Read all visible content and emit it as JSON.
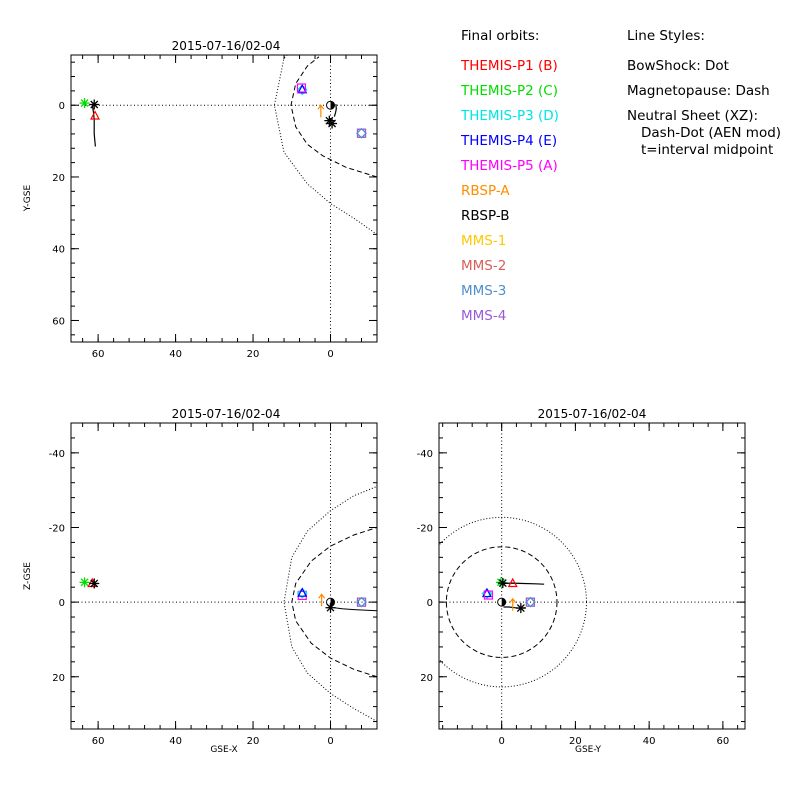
{
  "legend": {
    "orbits_title": "Final orbits:",
    "styles_title": "Line Styles:",
    "orbits": [
      {
        "label": "THEMIS-P1 (B)",
        "color": "#ff0000"
      },
      {
        "label": "THEMIS-P2 (C)",
        "color": "#00dd00"
      },
      {
        "label": "THEMIS-P3 (D)",
        "color": "#00e5e5"
      },
      {
        "label": "THEMIS-P4 (E)",
        "color": "#0000ff"
      },
      {
        "label": "THEMIS-P5 (A)",
        "color": "#ff00ff"
      },
      {
        "label": "RBSP-A",
        "color": "#ff8c00"
      },
      {
        "label": "RBSP-B",
        "color": "#000000"
      },
      {
        "label": "MMS-1",
        "color": "#ffc800"
      },
      {
        "label": "MMS-2",
        "color": "#d8605a"
      },
      {
        "label": "MMS-3",
        "color": "#4f8fd0"
      },
      {
        "label": "MMS-4",
        "color": "#9a5cd6"
      }
    ],
    "styles": [
      "BowShock: Dot",
      "Magnetopause: Dash",
      "Neutral Sheet (XZ):",
      "Dash-Dot (AEN mod)",
      "t=interval midpoint"
    ]
  },
  "chart_data": [
    {
      "id": "xy",
      "type": "scatter",
      "title": "2015-07-16/02-04",
      "xlabel": "",
      "ylabel": "Y-GSE",
      "xlim": [
        67,
        -12
      ],
      "ylim": [
        -14,
        66
      ],
      "xticks": [
        60,
        40,
        20,
        0
      ],
      "yticks": [
        0,
        20,
        40,
        60
      ],
      "bowshock": [
        [
          -12,
          36
        ],
        [
          -6,
          31.5
        ],
        [
          0,
          27.4
        ],
        [
          6,
          21.9
        ],
        [
          12,
          13.1
        ],
        [
          14.5,
          0
        ],
        [
          12,
          -13.1
        ],
        [
          8,
          -17.5
        ],
        [
          5,
          -20
        ]
      ],
      "magnetopause": [
        [
          -12,
          20
        ],
        [
          -4,
          17.3
        ],
        [
          2,
          14.1
        ],
        [
          6,
          10.9
        ],
        [
          9,
          6
        ],
        [
          10.2,
          0
        ],
        [
          9,
          -6
        ],
        [
          6,
          -10.9
        ],
        [
          3,
          -13.5
        ]
      ],
      "track": [
        [
          61.5,
          0
        ],
        [
          61.2,
          2
        ],
        [
          61,
          4
        ],
        [
          61,
          6
        ],
        [
          61,
          8
        ],
        [
          60.7,
          11.5
        ]
      ],
      "rbsp_track": [
        [
          -1,
          3.2
        ],
        [
          -1.3,
          2
        ],
        [
          -1.5,
          1
        ],
        [
          -1.4,
          -0.3
        ]
      ],
      "markers": [
        {
          "name": "THEMIS-P1 (B)",
          "x": 60.8,
          "y": 3,
          "shape": "triangle",
          "color": "#ff0000"
        },
        {
          "name": "THEMIS-P2 (C)",
          "x": 63.5,
          "y": -0.6,
          "shape": "star",
          "color": "#00dd00"
        },
        {
          "name": "THEMIS-P3 (D)",
          "x": 7.3,
          "y": -4.3,
          "shape": "diamond",
          "color": "#00e5e5"
        },
        {
          "name": "THEMIS-P4 (E)",
          "x": 7.3,
          "y": -4.3,
          "shape": "triangle",
          "color": "#0000ff"
        },
        {
          "name": "THEMIS-P5 (A)",
          "x": 7.5,
          "y": -4.8,
          "shape": "square",
          "color": "#ff00ff"
        },
        {
          "name": "RBSP-A",
          "x": 2.5,
          "y": 1.7,
          "shape": "arrow",
          "color": "#ff8c00"
        },
        {
          "name": "RBSP-B",
          "x": -0.4,
          "y": 5.1,
          "shape": "star",
          "color": "#000000"
        },
        {
          "name": "THEMIS-P1 track end",
          "x": 61,
          "y": -0.2,
          "shape": "star",
          "color": "#000000"
        },
        {
          "name": "RBSP-B",
          "x": 0.3,
          "y": 4.3,
          "shape": "star",
          "color": "#000000"
        },
        {
          "name": "MMS-2",
          "x": -8,
          "y": 7.8,
          "shape": "square",
          "color": "#d8605a"
        },
        {
          "name": "MMS-4",
          "x": -8,
          "y": 7.8,
          "shape": "square",
          "color": "#9a5cd6"
        },
        {
          "name": "MMS-3",
          "x": -8,
          "y": 7.8,
          "shape": "diamond",
          "color": "#4f8fd0"
        }
      ]
    },
    {
      "id": "xz",
      "type": "scatter",
      "title": "2015-07-16/02-04",
      "xlabel": "GSE-X",
      "ylabel": "Z-GSE",
      "xlim": [
        67,
        -12
      ],
      "ylim": [
        -48,
        34
      ],
      "xticks": [
        60,
        40,
        20,
        0
      ],
      "yticks": [
        -40,
        -20,
        0,
        20
      ],
      "bowshock": [
        [
          -12,
          32
        ],
        [
          -6,
          28.5
        ],
        [
          0,
          24.5
        ],
        [
          6,
          19
        ],
        [
          10,
          12
        ],
        [
          12,
          0
        ],
        [
          10,
          -12
        ],
        [
          6,
          -19
        ],
        [
          0,
          -24.5
        ],
        [
          -6,
          -28.5
        ],
        [
          -12,
          -31
        ]
      ],
      "magnetopause": [
        [
          -12,
          20
        ],
        [
          -6,
          18
        ],
        [
          0,
          15
        ],
        [
          5,
          11
        ],
        [
          9,
          5
        ],
        [
          10,
          0
        ],
        [
          9,
          -5
        ],
        [
          5,
          -11
        ],
        [
          0,
          -15
        ],
        [
          -6,
          -18
        ],
        [
          -12,
          -20
        ]
      ],
      "neutral_sheet": [
        [
          -1,
          1.5
        ],
        [
          -3,
          1.8
        ],
        [
          -6,
          2
        ],
        [
          -12,
          2.3
        ]
      ],
      "markers": [
        {
          "name": "THEMIS-P2 (C)",
          "x": 63.5,
          "y": -5.3,
          "shape": "star",
          "color": "#00dd00"
        },
        {
          "name": "THEMIS-P1 (B)",
          "x": 61.5,
          "y": -5,
          "shape": "triangle",
          "color": "#ff0000"
        },
        {
          "name": "THEMIS-P1 track end",
          "x": 61,
          "y": -5,
          "shape": "star",
          "color": "#000000"
        },
        {
          "name": "THEMIS-P5 (A)",
          "x": 7.3,
          "y": -1.8,
          "shape": "square",
          "color": "#ff00ff"
        },
        {
          "name": "THEMIS-P3 (D)",
          "x": 7.3,
          "y": -2.4,
          "shape": "diamond",
          "color": "#00e5e5"
        },
        {
          "name": "THEMIS-P4 (E)",
          "x": 7.3,
          "y": -2.4,
          "shape": "triangle",
          "color": "#0000ff"
        },
        {
          "name": "RBSP-A",
          "x": 2.3,
          "y": -0.5,
          "shape": "arrow",
          "color": "#ff8c00"
        },
        {
          "name": "RBSP-B",
          "x": 0,
          "y": 1.5,
          "shape": "star",
          "color": "#000000"
        },
        {
          "name": "MMS-2",
          "x": -8,
          "y": 0,
          "shape": "square",
          "color": "#d8605a"
        },
        {
          "name": "MMS-4",
          "x": -8,
          "y": 0,
          "shape": "square",
          "color": "#9a5cd6"
        },
        {
          "name": "MMS-3",
          "x": -8,
          "y": 0,
          "shape": "diamond",
          "color": "#4f8fd0"
        }
      ]
    },
    {
      "id": "yz",
      "type": "scatter",
      "title": "2015-07-16/02-04",
      "xlabel": "GSE-Y",
      "ylabel": "",
      "xlim": [
        -17,
        66
      ],
      "ylim": [
        -48,
        34
      ],
      "xticks": [
        0,
        20,
        40,
        60
      ],
      "yticks": [
        -40,
        -20,
        0,
        20
      ],
      "bowshock_radius": 23,
      "magnetopause_radius": 15,
      "track": [
        [
          0,
          -5
        ],
        [
          3,
          -5.1
        ],
        [
          6,
          -5
        ],
        [
          9,
          -4.9
        ],
        [
          11.5,
          -4.8
        ]
      ],
      "rbsp_track": [
        [
          0.5,
          1.3
        ],
        [
          2,
          1.3
        ],
        [
          3.5,
          1.5
        ],
        [
          5,
          1.6
        ],
        [
          6.5,
          1.5
        ]
      ],
      "markers": [
        {
          "name": "THEMIS-P3 (D)",
          "x": -4,
          "y": -2.3,
          "shape": "diamond",
          "color": "#00e5e5"
        },
        {
          "name": "THEMIS-P4 (E)",
          "x": -4,
          "y": -2.3,
          "shape": "triangle",
          "color": "#0000ff"
        },
        {
          "name": "THEMIS-P5 (A)",
          "x": -3.6,
          "y": -1.9,
          "shape": "square",
          "color": "#ff00ff"
        },
        {
          "name": "THEMIS-P2 (C)",
          "x": -0.2,
          "y": -5.3,
          "shape": "star",
          "color": "#00dd00"
        },
        {
          "name": "THEMIS-P1 track end",
          "x": 0.3,
          "y": -5.1,
          "shape": "star",
          "color": "#000000"
        },
        {
          "name": "THEMIS-P1 (B)",
          "x": 3,
          "y": -5,
          "shape": "triangle",
          "color": "#ff0000"
        },
        {
          "name": "RBSP-A",
          "x": 3,
          "y": 0.7,
          "shape": "arrow",
          "color": "#ff8c00"
        },
        {
          "name": "RBSP-B",
          "x": 5.2,
          "y": 1.6,
          "shape": "star",
          "color": "#000000"
        },
        {
          "name": "MMS-2",
          "x": 7.8,
          "y": 0,
          "shape": "square",
          "color": "#d8605a"
        },
        {
          "name": "MMS-4",
          "x": 7.8,
          "y": 0,
          "shape": "square",
          "color": "#9a5cd6"
        },
        {
          "name": "MMS-3",
          "x": 7.8,
          "y": 0,
          "shape": "diamond",
          "color": "#4f8fd0"
        }
      ]
    }
  ]
}
